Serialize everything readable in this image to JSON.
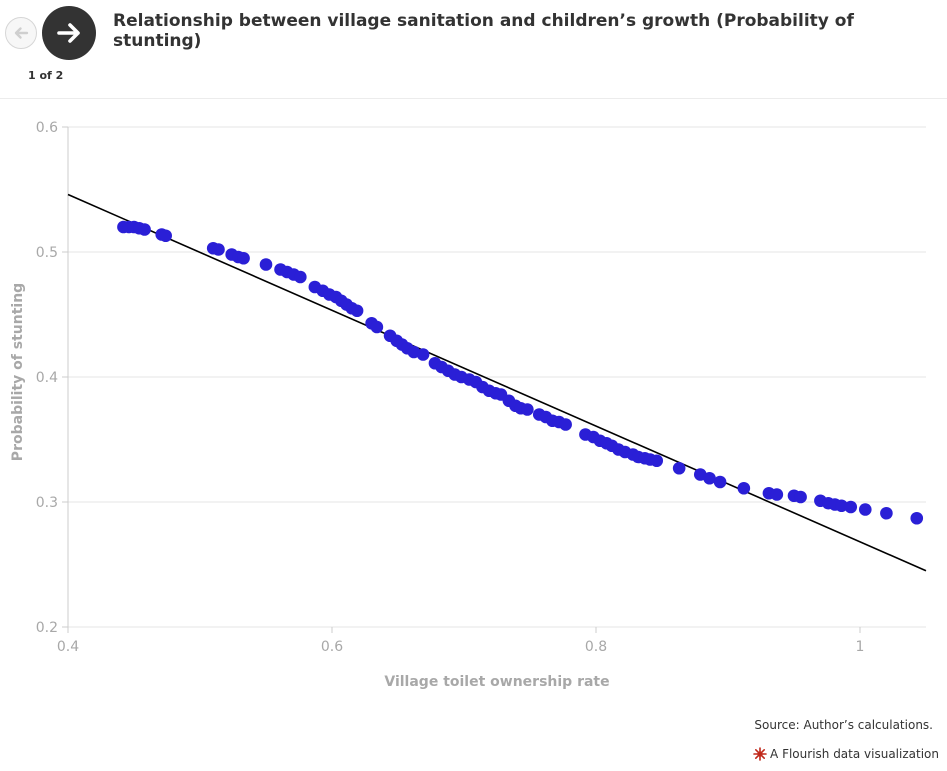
{
  "navigation": {
    "counter": "1 of 2"
  },
  "title": "Relationship between village sanitation and children’s growth (Probability of stunting)",
  "source": "Source: Author’s calculations.",
  "credit": "A Flourish data visualization",
  "icons": {
    "previous": "arrow-left-icon",
    "next": "arrow-right-icon",
    "credit_logo": "flourish-logo-icon"
  },
  "colors": {
    "points": "#2a1fd6",
    "fit_line": "#000000",
    "grid": "#e6e6e6",
    "axis_text": "#a8a8a8",
    "credit_logo": "#c0281b"
  },
  "chart_data": {
    "type": "scatter",
    "xlabel": "Village toilet ownership rate",
    "ylabel": "Probability of stunting",
    "xlim": [
      0.4,
      1.05
    ],
    "ylim": [
      0.2,
      0.6
    ],
    "x_ticks": [
      0.4,
      0.6,
      0.8,
      1
    ],
    "x_tick_labels": [
      "0.4",
      "0.6",
      "0.8",
      "1"
    ],
    "y_ticks": [
      0.2,
      0.3,
      0.4,
      0.5,
      0.6
    ],
    "y_tick_labels": [
      "0.2",
      "0.3",
      "0.4",
      "0.5",
      "0.6"
    ],
    "grid": true,
    "fit_line": {
      "x": [
        0.4,
        1.05
      ],
      "y": [
        0.546,
        0.245
      ]
    },
    "x": [
      0.442,
      0.446,
      0.45,
      0.454,
      0.458,
      0.471,
      0.474,
      0.51,
      0.514,
      0.524,
      0.529,
      0.533,
      0.55,
      0.561,
      0.566,
      0.571,
      0.576,
      0.587,
      0.593,
      0.598,
      0.603,
      0.607,
      0.611,
      0.615,
      0.619,
      0.63,
      0.634,
      0.644,
      0.649,
      0.653,
      0.657,
      0.662,
      0.669,
      0.678,
      0.683,
      0.688,
      0.693,
      0.698,
      0.704,
      0.709,
      0.714,
      0.719,
      0.724,
      0.728,
      0.734,
      0.739,
      0.743,
      0.748,
      0.757,
      0.762,
      0.767,
      0.772,
      0.777,
      0.792,
      0.798,
      0.803,
      0.808,
      0.812,
      0.817,
      0.822,
      0.828,
      0.832,
      0.837,
      0.841,
      0.846,
      0.863,
      0.879,
      0.886,
      0.894,
      0.912,
      0.931,
      0.937,
      0.95,
      0.955,
      0.97,
      0.976,
      0.981,
      0.986,
      0.993,
      1.004,
      1.02,
      1.043
    ],
    "y": [
      0.52,
      0.52,
      0.52,
      0.519,
      0.518,
      0.514,
      0.513,
      0.503,
      0.502,
      0.498,
      0.496,
      0.495,
      0.49,
      0.486,
      0.484,
      0.482,
      0.48,
      0.472,
      0.469,
      0.466,
      0.464,
      0.461,
      0.458,
      0.455,
      0.453,
      0.443,
      0.44,
      0.433,
      0.429,
      0.426,
      0.423,
      0.42,
      0.418,
      0.411,
      0.408,
      0.405,
      0.402,
      0.4,
      0.398,
      0.396,
      0.392,
      0.389,
      0.387,
      0.386,
      0.381,
      0.377,
      0.375,
      0.374,
      0.37,
      0.368,
      0.365,
      0.364,
      0.362,
      0.354,
      0.352,
      0.349,
      0.347,
      0.345,
      0.342,
      0.34,
      0.338,
      0.336,
      0.335,
      0.334,
      0.333,
      0.327,
      0.322,
      0.319,
      0.316,
      0.311,
      0.307,
      0.306,
      0.305,
      0.304,
      0.301,
      0.299,
      0.298,
      0.297,
      0.296,
      0.294,
      0.291,
      0.287
    ]
  }
}
